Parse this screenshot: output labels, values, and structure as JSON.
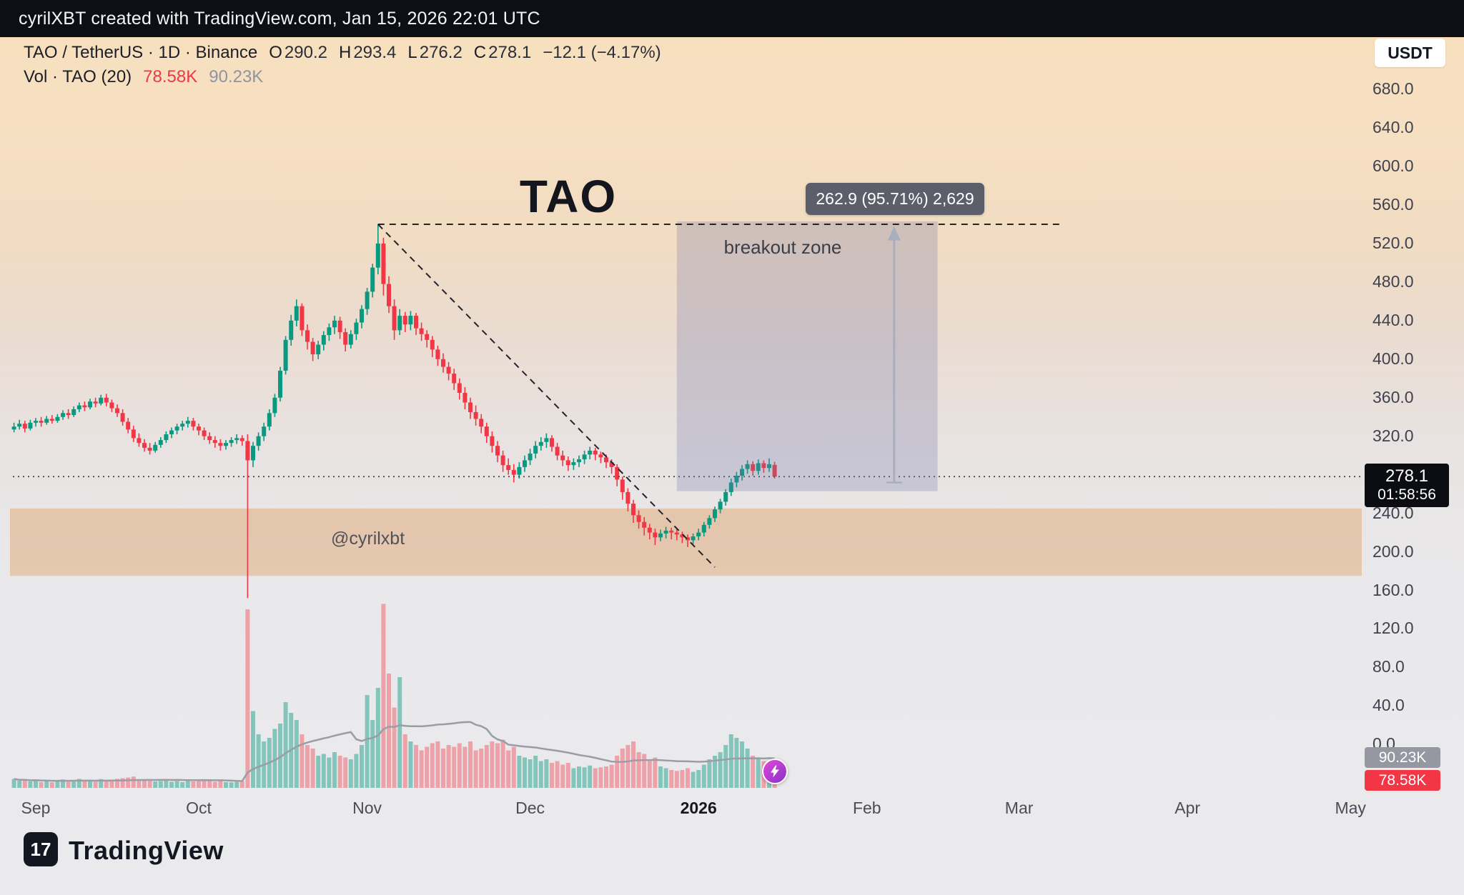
{
  "top_bar": {
    "text": "cyrilXBT created with TradingView.com, Jan 15, 2026 22:01 UTC"
  },
  "legend": {
    "symbol": "TAO / TetherUS · 1D · Binance",
    "ohlc": [
      {
        "k": "O",
        "v": "290.2"
      },
      {
        "k": "H",
        "v": "293.4"
      },
      {
        "k": "L",
        "v": "276.2"
      },
      {
        "k": "C",
        "v": "278.1"
      }
    ],
    "change": "−12.1 (−4.17%)",
    "volume_row": {
      "label": "Vol · TAO (20)",
      "value": "78.58K",
      "ma": "90.23K"
    }
  },
  "axis": {
    "currency_button": "USDT",
    "price_ticks": [
      {
        "label": "680.0",
        "value": 680
      },
      {
        "label": "640.0",
        "value": 640
      },
      {
        "label": "600.0",
        "value": 600
      },
      {
        "label": "560.0",
        "value": 560
      },
      {
        "label": "520.0",
        "value": 520
      },
      {
        "label": "480.0",
        "value": 480
      },
      {
        "label": "440.0",
        "value": 440
      },
      {
        "label": "400.0",
        "value": 400
      },
      {
        "label": "360.0",
        "value": 360
      },
      {
        "label": "320.0",
        "value": 320
      },
      {
        "label": "240.0",
        "value": 240
      },
      {
        "label": "200.0",
        "value": 200
      },
      {
        "label": "160.0",
        "value": 160
      },
      {
        "label": "120.0",
        "value": 120
      },
      {
        "label": "80.0",
        "value": 80
      },
      {
        "label": "40.0",
        "value": 40
      },
      {
        "label": "0.0",
        "value": 0
      }
    ],
    "time_ticks": [
      {
        "label": "Sep",
        "day": 4
      },
      {
        "label": "Oct",
        "day": 34
      },
      {
        "label": "Nov",
        "day": 65
      },
      {
        "label": "Dec",
        "day": 95
      },
      {
        "label": "2026",
        "day": 126,
        "bold": true
      },
      {
        "label": "Feb",
        "day": 157
      },
      {
        "label": "Mar",
        "day": 185
      },
      {
        "label": "Apr",
        "day": 216
      },
      {
        "label": "May",
        "day": 246
      }
    ],
    "price_tag": {
      "price": "278.1",
      "countdown": "01:58:56"
    },
    "volume_tags": {
      "ma": "90.23K",
      "current": "78.58K"
    }
  },
  "annotations": {
    "title": "TAO",
    "breakout_zone_label": "breakout zone",
    "handle": "@cyrilxbt",
    "measure_tooltip": "262.9 (95.71%) 2,629"
  },
  "footer": {
    "brand": "TradingView",
    "logo_glyph": "17"
  },
  "icons": {
    "spark_badge": "lightning-bolt",
    "logo": "tradingview-mark"
  },
  "colors": {
    "up": "#089981",
    "down": "#f23645",
    "volume_up": "rgba(8,153,129,0.45)",
    "volume_down": "rgba(242,54,69,0.40)",
    "band": "rgba(222,146,80,0.38)",
    "box": "rgba(114,118,165,0.27)",
    "arrow": "#a9aebf",
    "ma_line": "#9a9da6",
    "dash": "#22242c",
    "price_line": "#41444d",
    "accent_red": "#f23645"
  },
  "chart_data": {
    "type": "candlestick",
    "symbol": "TAO/USDT",
    "exchange": "Binance",
    "timeframe": "1D",
    "start_date": "2025-08-28",
    "price_axis": {
      "min": 0,
      "max": 700,
      "tick_step": 40
    },
    "last": {
      "open": 290.2,
      "high": 293.4,
      "low": 276.2,
      "close": 278.1,
      "change": -12.1,
      "change_pct": -4.17,
      "volume_k": 78.58,
      "volume_ma_k": 90.23
    },
    "candles": [
      [
        327,
        334,
        324,
        330,
        50
      ],
      [
        330,
        337,
        327,
        333,
        40
      ],
      [
        333,
        336,
        324,
        328,
        45
      ],
      [
        328,
        337,
        326,
        334,
        36
      ],
      [
        334,
        339,
        330,
        336,
        43
      ],
      [
        336,
        340,
        330,
        334,
        32
      ],
      [
        334,
        341,
        332,
        338,
        40
      ],
      [
        338,
        342,
        333,
        336,
        31
      ],
      [
        336,
        343,
        334,
        340,
        38
      ],
      [
        340,
        347,
        337,
        344,
        47
      ],
      [
        344,
        348,
        338,
        342,
        34
      ],
      [
        342,
        351,
        340,
        348,
        43
      ],
      [
        348,
        355,
        345,
        352,
        50
      ],
      [
        352,
        356,
        346,
        350,
        36
      ],
      [
        350,
        359,
        348,
        356,
        45
      ],
      [
        356,
        360,
        350,
        354,
        34
      ],
      [
        354,
        363,
        352,
        360,
        49
      ],
      [
        360,
        364,
        351,
        355,
        40
      ],
      [
        355,
        358,
        345,
        349,
        45
      ],
      [
        349,
        353,
        340,
        344,
        50
      ],
      [
        344,
        348,
        331,
        335,
        54
      ],
      [
        335,
        339,
        323,
        327,
        58
      ],
      [
        327,
        331,
        314,
        318,
        63
      ],
      [
        318,
        323,
        309,
        313,
        47
      ],
      [
        313,
        317,
        304,
        308,
        43
      ],
      [
        308,
        313,
        301,
        305,
        40
      ],
      [
        305,
        314,
        303,
        311,
        36
      ],
      [
        311,
        319,
        308,
        316,
        38
      ],
      [
        316,
        325,
        313,
        322,
        43
      ],
      [
        322,
        329,
        318,
        326,
        34
      ],
      [
        326,
        333,
        322,
        330,
        38
      ],
      [
        330,
        336,
        326,
        333,
        32
      ],
      [
        333,
        340,
        329,
        336,
        40
      ],
      [
        336,
        339,
        326,
        330,
        36
      ],
      [
        330,
        333,
        321,
        326,
        41
      ],
      [
        326,
        329,
        316,
        320,
        45
      ],
      [
        320,
        324,
        312,
        316,
        38
      ],
      [
        316,
        320,
        308,
        313,
        34
      ],
      [
        313,
        317,
        305,
        310,
        40
      ],
      [
        310,
        316,
        306,
        313,
        32
      ],
      [
        313,
        319,
        309,
        316,
        31
      ],
      [
        316,
        322,
        312,
        318,
        34
      ],
      [
        318,
        321,
        310,
        315,
        38
      ],
      [
        315,
        322,
        152,
        295,
        1000
      ],
      [
        295,
        314,
        288,
        310,
        430
      ],
      [
        310,
        324,
        305,
        320,
        300
      ],
      [
        320,
        334,
        315,
        330,
        260
      ],
      [
        330,
        348,
        326,
        344,
        280
      ],
      [
        344,
        364,
        340,
        360,
        330
      ],
      [
        360,
        392,
        356,
        388,
        360
      ],
      [
        388,
        424,
        384,
        420,
        480
      ],
      [
        420,
        446,
        414,
        440,
        420
      ],
      [
        440,
        462,
        434,
        455,
        380
      ],
      [
        455,
        458,
        424,
        430,
        300
      ],
      [
        430,
        436,
        410,
        418,
        240
      ],
      [
        418,
        422,
        398,
        405,
        220
      ],
      [
        405,
        419,
        400,
        415,
        180
      ],
      [
        415,
        429,
        409,
        425,
        190
      ],
      [
        425,
        437,
        419,
        433,
        170
      ],
      [
        433,
        445,
        426,
        440,
        200
      ],
      [
        440,
        444,
        421,
        428,
        180
      ],
      [
        428,
        432,
        408,
        415,
        170
      ],
      [
        415,
        430,
        411,
        426,
        160
      ],
      [
        426,
        442,
        420,
        438,
        190
      ],
      [
        438,
        456,
        432,
        452,
        240
      ],
      [
        452,
        474,
        446,
        470,
        520
      ],
      [
        470,
        499,
        464,
        495,
        380
      ],
      [
        495,
        540,
        488,
        520,
        560
      ],
      [
        520,
        526,
        466,
        478,
        1030
      ],
      [
        478,
        486,
        448,
        455,
        640
      ],
      [
        455,
        462,
        420,
        430,
        450
      ],
      [
        430,
        452,
        425,
        445,
        620
      ],
      [
        445,
        449,
        428,
        436,
        300
      ],
      [
        436,
        450,
        430,
        445,
        260
      ],
      [
        445,
        448,
        425,
        432,
        240
      ],
      [
        432,
        438,
        419,
        426,
        210
      ],
      [
        426,
        430,
        412,
        420,
        230
      ],
      [
        420,
        424,
        402,
        410,
        250
      ],
      [
        410,
        414,
        393,
        400,
        260
      ],
      [
        400,
        406,
        386,
        392,
        220
      ],
      [
        392,
        397,
        378,
        385,
        240
      ],
      [
        385,
        390,
        368,
        375,
        230
      ],
      [
        375,
        380,
        358,
        365,
        250
      ],
      [
        365,
        371,
        348,
        355,
        230
      ],
      [
        355,
        360,
        338,
        345,
        260
      ],
      [
        345,
        352,
        331,
        338,
        210
      ],
      [
        338,
        343,
        323,
        330,
        220
      ],
      [
        330,
        334,
        313,
        320,
        240
      ],
      [
        320,
        325,
        303,
        310,
        260
      ],
      [
        310,
        315,
        293,
        300,
        250
      ],
      [
        300,
        305,
        283,
        290,
        270
      ],
      [
        290,
        297,
        280,
        285,
        210
      ],
      [
        285,
        291,
        272,
        280,
        230
      ],
      [
        280,
        293,
        276,
        288,
        180
      ],
      [
        288,
        300,
        283,
        295,
        170
      ],
      [
        295,
        307,
        290,
        302,
        160
      ],
      [
        302,
        315,
        297,
        310,
        180
      ],
      [
        310,
        319,
        305,
        314,
        150
      ],
      [
        314,
        323,
        308,
        318,
        160
      ],
      [
        318,
        321,
        304,
        309,
        140
      ],
      [
        309,
        313,
        295,
        300,
        150
      ],
      [
        300,
        305,
        289,
        295,
        130
      ],
      [
        295,
        299,
        284,
        290,
        140
      ],
      [
        290,
        297,
        285,
        293,
        110
      ],
      [
        293,
        300,
        288,
        296,
        120
      ],
      [
        296,
        305,
        291,
        301,
        115
      ],
      [
        301,
        309,
        296,
        305,
        125
      ],
      [
        305,
        308,
        295,
        301,
        110
      ],
      [
        301,
        304,
        292,
        298,
        115
      ],
      [
        298,
        301,
        287,
        293,
        120
      ],
      [
        293,
        296,
        281,
        288,
        130
      ],
      [
        288,
        291,
        268,
        275,
        180
      ],
      [
        275,
        278,
        254,
        262,
        220
      ],
      [
        262,
        266,
        242,
        250,
        240
      ],
      [
        250,
        254,
        230,
        238,
        260
      ],
      [
        238,
        243,
        224,
        231,
        200
      ],
      [
        231,
        236,
        217,
        225,
        190
      ],
      [
        225,
        229,
        213,
        220,
        160
      ],
      [
        220,
        224,
        207,
        215,
        170
      ],
      [
        215,
        223,
        211,
        219,
        120
      ],
      [
        219,
        226,
        214,
        222,
        110
      ],
      [
        222,
        225,
        213,
        220,
        100
      ],
      [
        220,
        224,
        212,
        218,
        95
      ],
      [
        218,
        221,
        209,
        215,
        100
      ],
      [
        215,
        218,
        205,
        212,
        110
      ],
      [
        212,
        219,
        208,
        216,
        90
      ],
      [
        216,
        224,
        212,
        220,
        100
      ],
      [
        220,
        231,
        216,
        228,
        130
      ],
      [
        228,
        238,
        224,
        235,
        160
      ],
      [
        235,
        247,
        231,
        244,
        180
      ],
      [
        244,
        255,
        240,
        252,
        200
      ],
      [
        252,
        265,
        248,
        262,
        240
      ],
      [
        262,
        276,
        258,
        272,
        300
      ],
      [
        272,
        283,
        267,
        279,
        280
      ],
      [
        279,
        290,
        274,
        286,
        260
      ],
      [
        286,
        295,
        281,
        291,
        220
      ],
      [
        291,
        294,
        279,
        284,
        180
      ],
      [
        284,
        296,
        280,
        292,
        170
      ],
      [
        292,
        295,
        282,
        287,
        150
      ],
      [
        287,
        297,
        283,
        291,
        150
      ],
      [
        290.2,
        293.4,
        276.2,
        278.1,
        78.58
      ]
    ],
    "drawings": {
      "resistance_level": 540,
      "resistance_from_day": 67,
      "resistance_to_day": 193,
      "trendline": {
        "from_day": 67,
        "from_price": 540,
        "to_day": 129,
        "to_price": 184
      },
      "breakout_box": {
        "from_day": 122,
        "to_day": 170,
        "price_top": 543,
        "price_bottom": 263
      },
      "measure_arrow": {
        "day": 162,
        "from_price": 272,
        "to_price": 538
      },
      "support_band": {
        "price_top": 245,
        "price_bottom": 175
      },
      "current_price_line": 278.1
    }
  }
}
